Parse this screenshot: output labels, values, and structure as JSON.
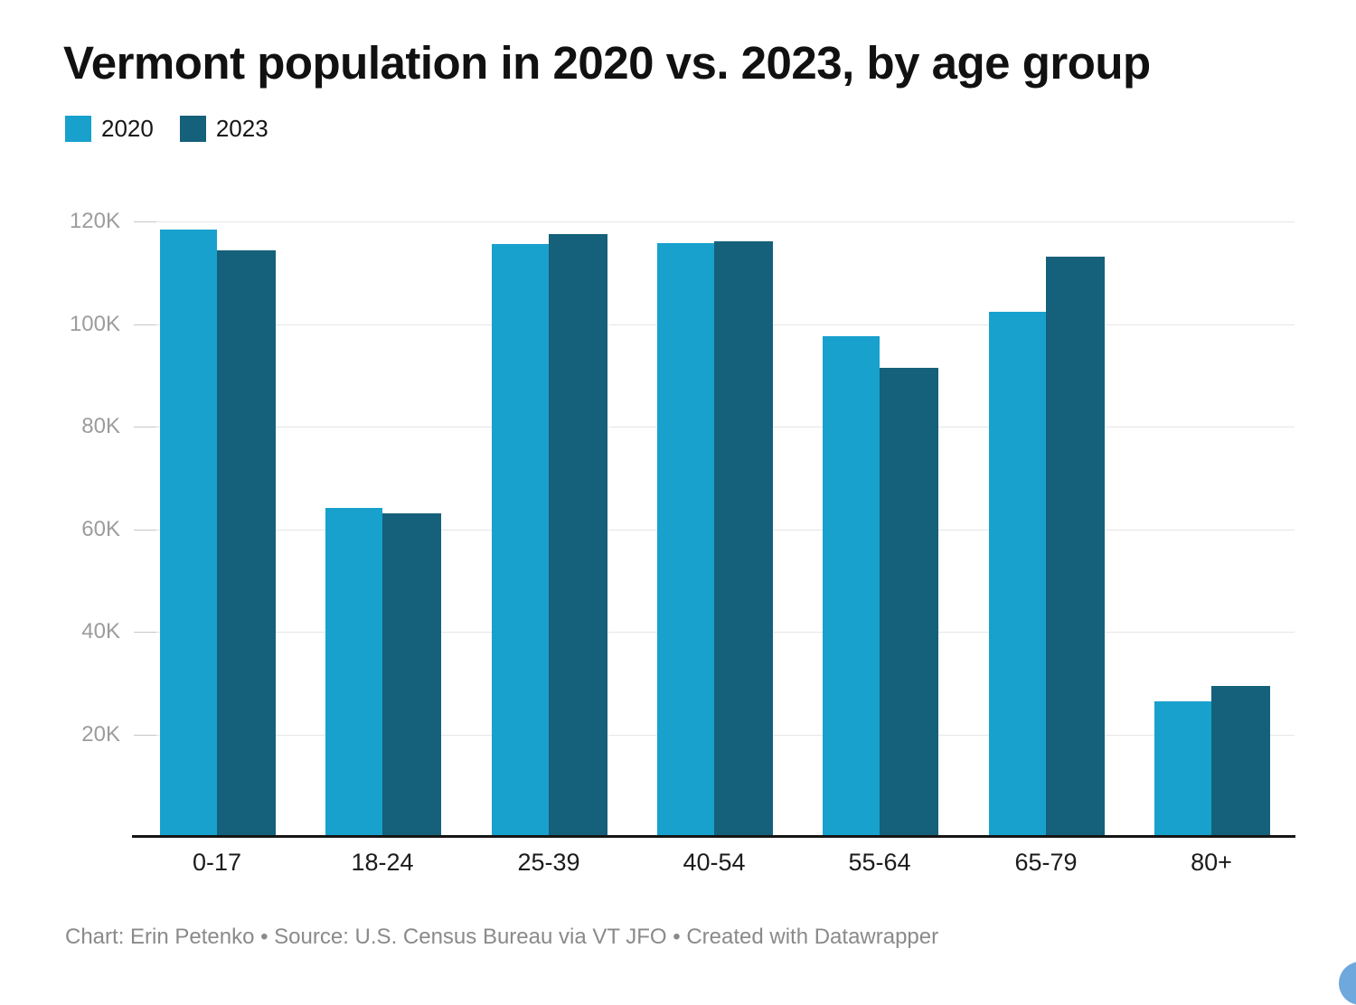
{
  "title": "Vermont population in 2020 vs. 2023, by age group",
  "legend": {
    "items": [
      {
        "label": "2020",
        "color": "#18a1cd"
      },
      {
        "label": "2023",
        "color": "#15607a"
      }
    ]
  },
  "chart_data": {
    "type": "bar",
    "title": "Vermont population in 2020 vs. 2023, by age group",
    "categories": [
      "0-17",
      "18-24",
      "25-39",
      "40-54",
      "55-64",
      "65-79",
      "80+"
    ],
    "series": [
      {
        "name": "2020",
        "color": "#18a1cd",
        "values": [
          118400,
          64100,
          115600,
          115800,
          97600,
          102400,
          26500
        ]
      },
      {
        "name": "2023",
        "color": "#15607a",
        "values": [
          114300,
          63000,
          117600,
          116100,
          91500,
          113200,
          29400
        ]
      }
    ],
    "xlabel": "",
    "ylabel": "",
    "ylim": [
      0,
      120000
    ],
    "ytick_interval": 20000,
    "ytick_labels": [
      "20K",
      "40K",
      "60K",
      "80K",
      "100K",
      "120K"
    ],
    "grid": "horizontal",
    "legend_position": "top-left"
  },
  "footer": {
    "text": "Chart: Erin Petenko • Source: U.S. Census Bureau via VT JFO • Created with Datawrapper"
  },
  "misc": {
    "corner_button_color": "#6fa8dc"
  }
}
